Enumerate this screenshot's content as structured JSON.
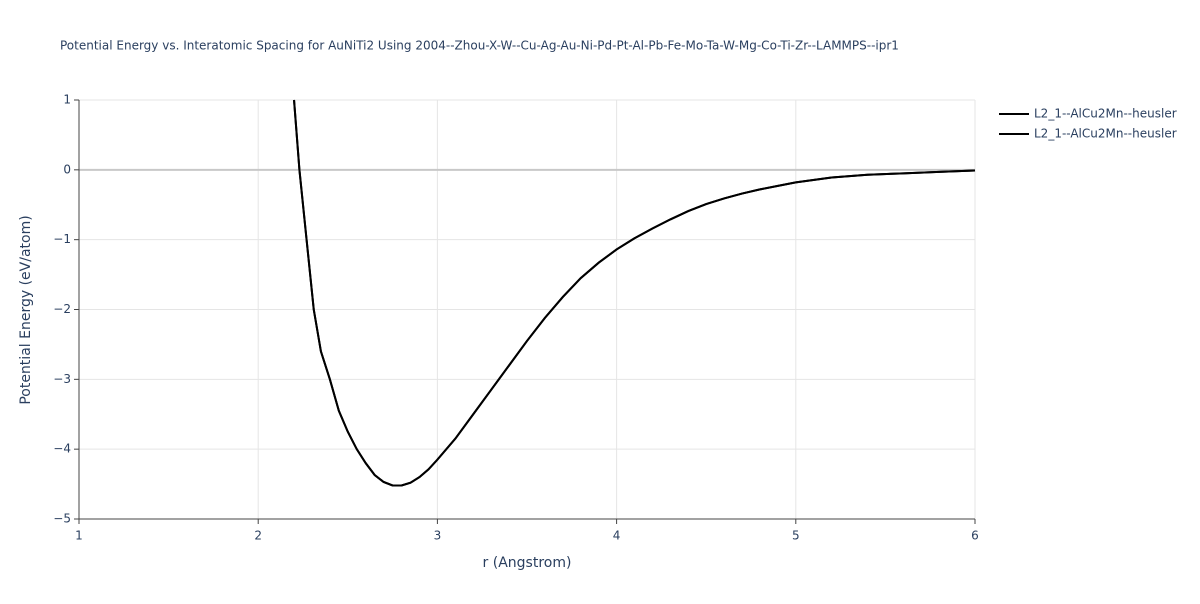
{
  "chart_data": {
    "type": "line",
    "title": "Potential Energy vs. Interatomic Spacing for AuNiTi2 Using 2004--Zhou-X-W--Cu-Ag-Au-Ni-Pd-Pt-Al-Pb-Fe-Mo-Ta-W-Mg-Co-Ti-Zr--LAMMPS--ipr1",
    "x_label": "r (Angstrom)",
    "y_label": "Potential Energy (eV/atom)",
    "x": [
      2.2,
      2.23,
      2.27,
      2.31,
      2.35,
      2.4,
      2.45,
      2.5,
      2.55,
      2.6,
      2.65,
      2.7,
      2.75,
      2.8,
      2.85,
      2.9,
      2.95,
      3.0,
      3.1,
      3.2,
      3.3,
      3.4,
      3.5,
      3.6,
      3.7,
      3.8,
      3.9,
      4.0,
      4.1,
      4.2,
      4.3,
      4.4,
      4.5,
      4.6,
      4.7,
      4.8,
      4.9,
      5.0,
      5.2,
      5.4,
      5.6,
      5.8,
      6.0
    ],
    "series": [
      {
        "name": "L2_1--AlCu2Mn--heusler",
        "color": "#000000",
        "values": [
          1.0,
          0.0,
          -1.0,
          -2.0,
          -2.6,
          -3.0,
          -3.45,
          -3.75,
          -4.0,
          -4.2,
          -4.37,
          -4.47,
          -4.52,
          -4.52,
          -4.48,
          -4.4,
          -4.29,
          -4.15,
          -3.85,
          -3.5,
          -3.15,
          -2.8,
          -2.45,
          -2.12,
          -1.82,
          -1.55,
          -1.33,
          -1.14,
          -0.98,
          -0.84,
          -0.71,
          -0.59,
          -0.49,
          -0.41,
          -0.34,
          -0.28,
          -0.23,
          -0.18,
          -0.11,
          -0.07,
          -0.05,
          -0.03,
          -0.01
        ]
      },
      {
        "name": "L2_1--AlCu2Mn--heusler",
        "color": "#000000",
        "values": [
          1.0,
          0.0,
          -1.0,
          -2.0,
          -2.6,
          -3.0,
          -3.45,
          -3.75,
          -4.0,
          -4.2,
          -4.37,
          -4.47,
          -4.52,
          -4.52,
          -4.48,
          -4.4,
          -4.29,
          -4.15,
          -3.85,
          -3.5,
          -3.15,
          -2.8,
          -2.45,
          -2.12,
          -1.82,
          -1.55,
          -1.33,
          -1.14,
          -0.98,
          -0.84,
          -0.71,
          -0.59,
          -0.49,
          -0.41,
          -0.34,
          -0.28,
          -0.23,
          -0.18,
          -0.11,
          -0.07,
          -0.05,
          -0.03,
          -0.01
        ]
      }
    ],
    "xlim": [
      1,
      6
    ],
    "xticks": [
      1,
      2,
      3,
      4,
      5,
      6
    ],
    "ylim": [
      -5,
      1
    ],
    "yticks": [
      {
        "value": -5,
        "label": "−5"
      },
      {
        "value": -4,
        "label": "−4"
      },
      {
        "value": -3,
        "label": "−3"
      },
      {
        "value": -2,
        "label": "−2"
      },
      {
        "value": -1,
        "label": "−1"
      },
      0,
      1
    ],
    "grid": true,
    "legend": "right"
  }
}
